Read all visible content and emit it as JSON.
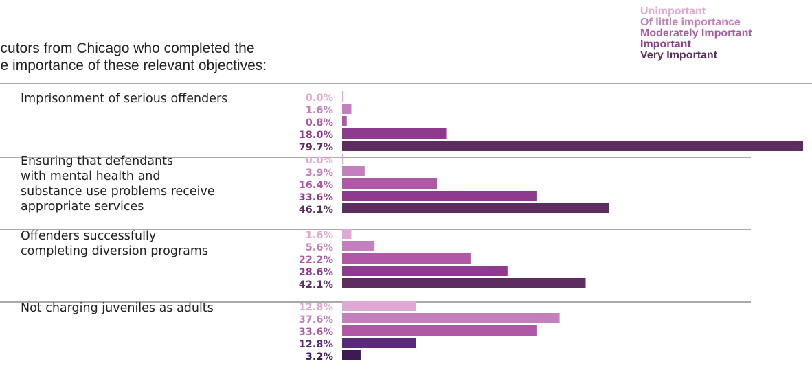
{
  "intro": {
    "line1": "prosecutors from Chicago who completed the",
    "line2": "ted the importance of these relevant objectives:"
  },
  "legend": [
    "Unimportant",
    "Of little importance",
    "Moderately Important",
    "Important",
    "Very Important"
  ],
  "colors": {
    "Unimportant": "#e0a8d4",
    "Of little importance": "#c47fbd",
    "Moderately Important": "#b058a6",
    "Important": "#8e3a8f",
    "Very Important": "#5c2d5e",
    "row4_important": "#5a2a7a",
    "row4_very_important": "#3e1a52"
  },
  "chart_data": {
    "type": "bar",
    "orientation": "horizontal",
    "unit": "%",
    "series_names": [
      "Unimportant",
      "Of little importance",
      "Moderately Important",
      "Important",
      "Very Important"
    ],
    "categories": [
      {
        "label_lines": [
          "Imprisonment of serious offenders"
        ],
        "values": [
          0.0,
          1.6,
          0.8,
          18.0,
          79.7
        ]
      },
      {
        "label_lines": [
          "Ensuring that defendants",
          "with mental health and",
          "substance use problems receive",
          "appropriate services"
        ],
        "values": [
          0.0,
          3.9,
          16.4,
          33.6,
          46.1
        ]
      },
      {
        "label_lines": [
          "Offenders successfully",
          "completing diversion programs"
        ],
        "values": [
          1.6,
          5.6,
          22.2,
          28.6,
          42.1
        ]
      },
      {
        "label_lines": [
          "Not charging juveniles as adults"
        ],
        "values": [
          12.8,
          37.6,
          33.6,
          12.8,
          3.2
        ]
      }
    ]
  }
}
